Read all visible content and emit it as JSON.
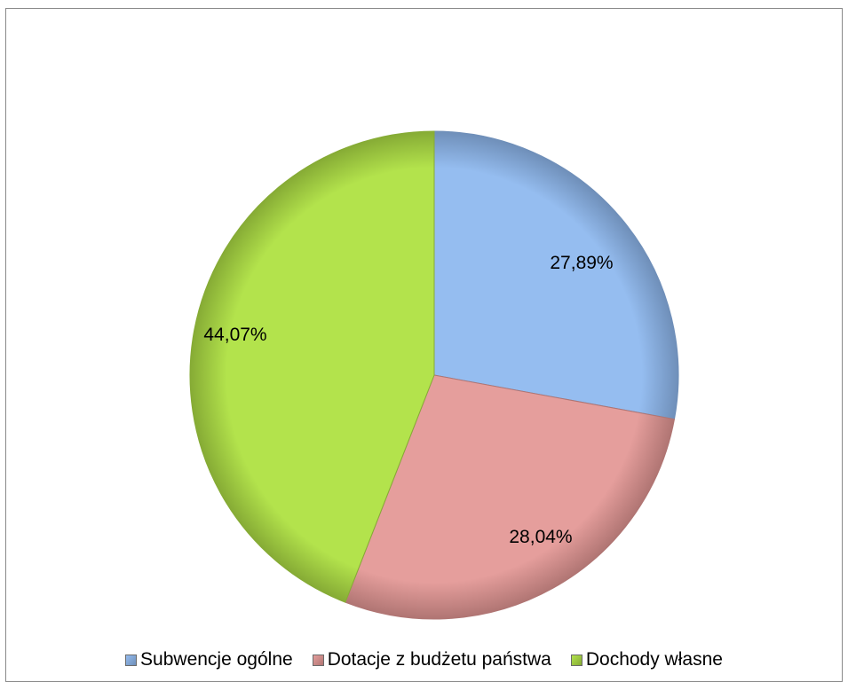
{
  "chart_data": {
    "type": "pie",
    "title": "",
    "start_angle_deg": 0,
    "direction": "clockwise",
    "legend_position": "bottom",
    "slices": [
      {
        "label": "Subwencje ogólne",
        "value": 27.89,
        "display": "27,89%",
        "color": "#95bdf0",
        "edge": "#6f8fb9"
      },
      {
        "label": "Dotacje z budżetu państwa",
        "value": 28.04,
        "display": "28,04%",
        "color": "#e59e9c",
        "edge": "#b07573"
      },
      {
        "label": "Dochody własne",
        "value": 44.07,
        "display": "44,07%",
        "color": "#b3e34c",
        "edge": "#86ab35"
      }
    ]
  }
}
